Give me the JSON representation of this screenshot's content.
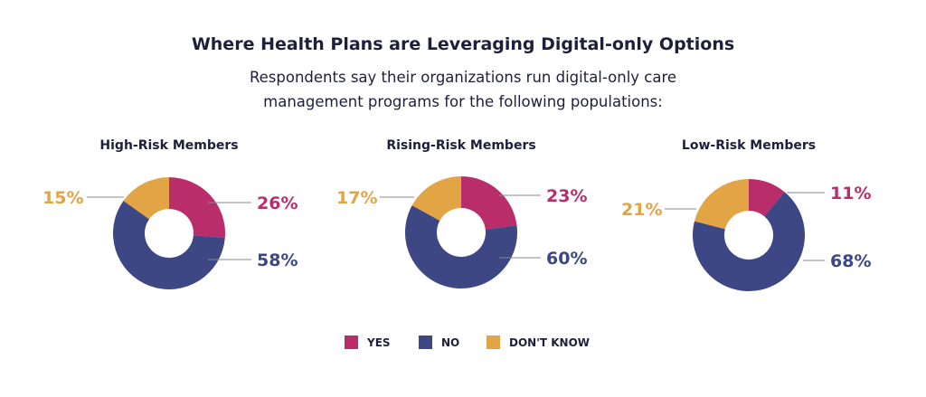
{
  "title": "Where Health Plans are Leveraging Digital-only Options",
  "subtitle": "Respondents say their organizations run digital-only care management programs for the following populations:",
  "chart_data": [
    {
      "type": "pie",
      "title": "High-Risk Members",
      "categories": [
        "YES",
        "NO",
        "DON'T KNOW"
      ],
      "values": [
        26,
        58,
        15
      ],
      "labels": [
        "26%",
        "58%",
        "15%"
      ]
    },
    {
      "type": "pie",
      "title": "Rising-Risk Members",
      "categories": [
        "YES",
        "NO",
        "DON'T KNOW"
      ],
      "values": [
        23,
        60,
        17
      ],
      "labels": [
        "23%",
        "60%",
        "17%"
      ]
    },
    {
      "type": "pie",
      "title": "Low-Risk Members",
      "categories": [
        "YES",
        "NO",
        "DON'T KNOW"
      ],
      "values": [
        11,
        68,
        21
      ],
      "labels": [
        "11%",
        "68%",
        "21%"
      ]
    }
  ],
  "legend": {
    "placement": "bottom",
    "items": [
      {
        "label": "YES",
        "color": "#B92D6B"
      },
      {
        "label": "NO",
        "color": "#3D4784"
      },
      {
        "label": "DON'T KNOW",
        "color": "#E2A445"
      }
    ]
  }
}
